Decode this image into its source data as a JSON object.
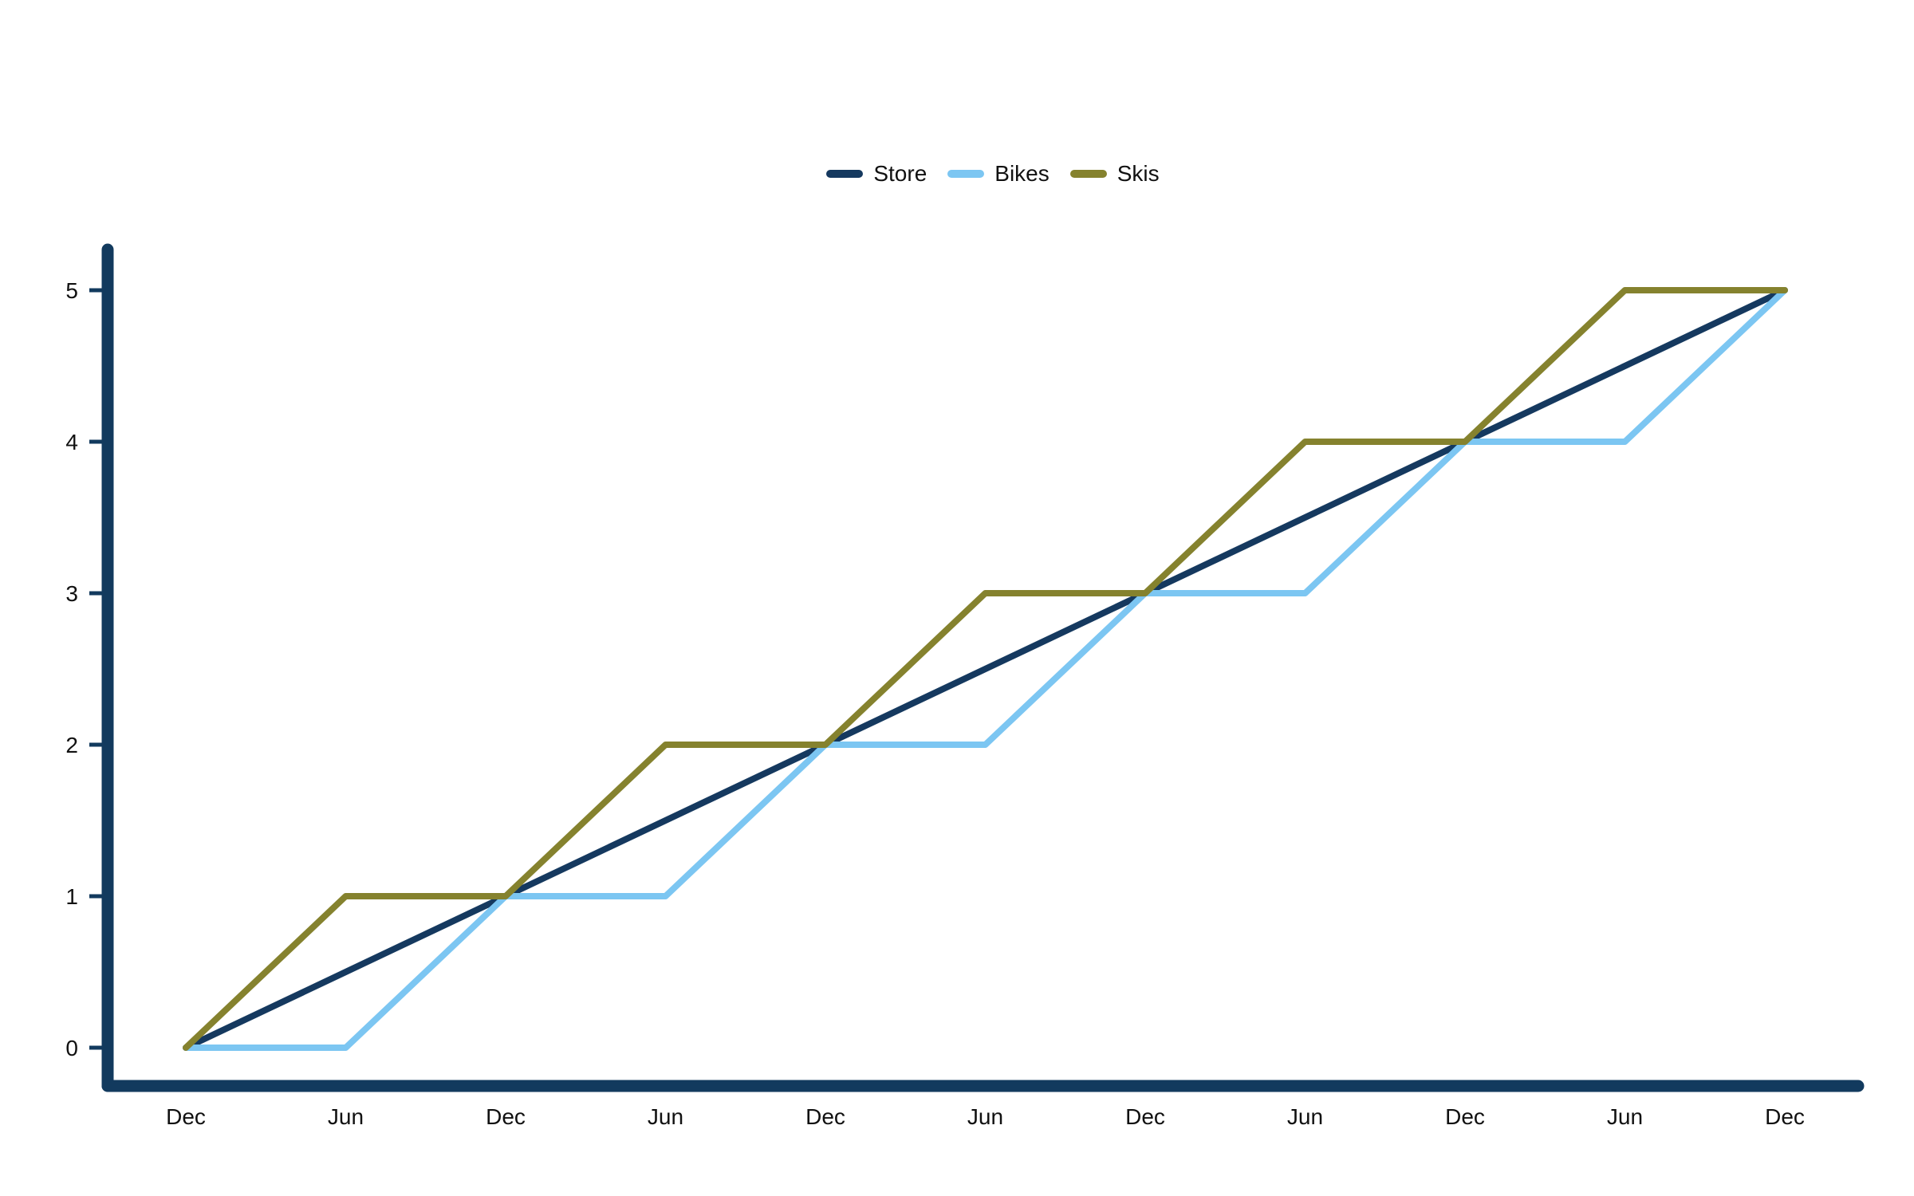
{
  "chart_data": {
    "type": "line",
    "title": "",
    "xlabel": "",
    "ylabel": "",
    "x_labels": [
      "Dec",
      "Jun",
      "Dec",
      "Jun",
      "Dec",
      "Jun",
      "Dec",
      "Jun",
      "Dec",
      "Jun",
      "Dec"
    ],
    "series": [
      {
        "name": "Store",
        "color": "#15395f",
        "values": [
          0,
          0.5,
          1,
          1.5,
          2,
          2.5,
          3,
          3.5,
          4,
          4.5,
          5
        ]
      },
      {
        "name": "Bikes",
        "color": "#7cc6f2",
        "values": [
          0,
          0,
          1,
          1,
          2,
          2,
          3,
          3,
          4,
          4,
          5
        ]
      },
      {
        "name": "Skis",
        "color": "#85822e",
        "values": [
          0,
          1,
          1,
          2,
          2,
          3,
          3,
          4,
          4,
          5,
          5
        ]
      }
    ],
    "ylim": [
      0,
      5
    ],
    "yticks": [
      0,
      1,
      2,
      3,
      4,
      5
    ],
    "legend_position": "top-center",
    "grid": false,
    "axis_color": "#123a5e",
    "text_color": "#111111",
    "background": "#ffffff"
  }
}
